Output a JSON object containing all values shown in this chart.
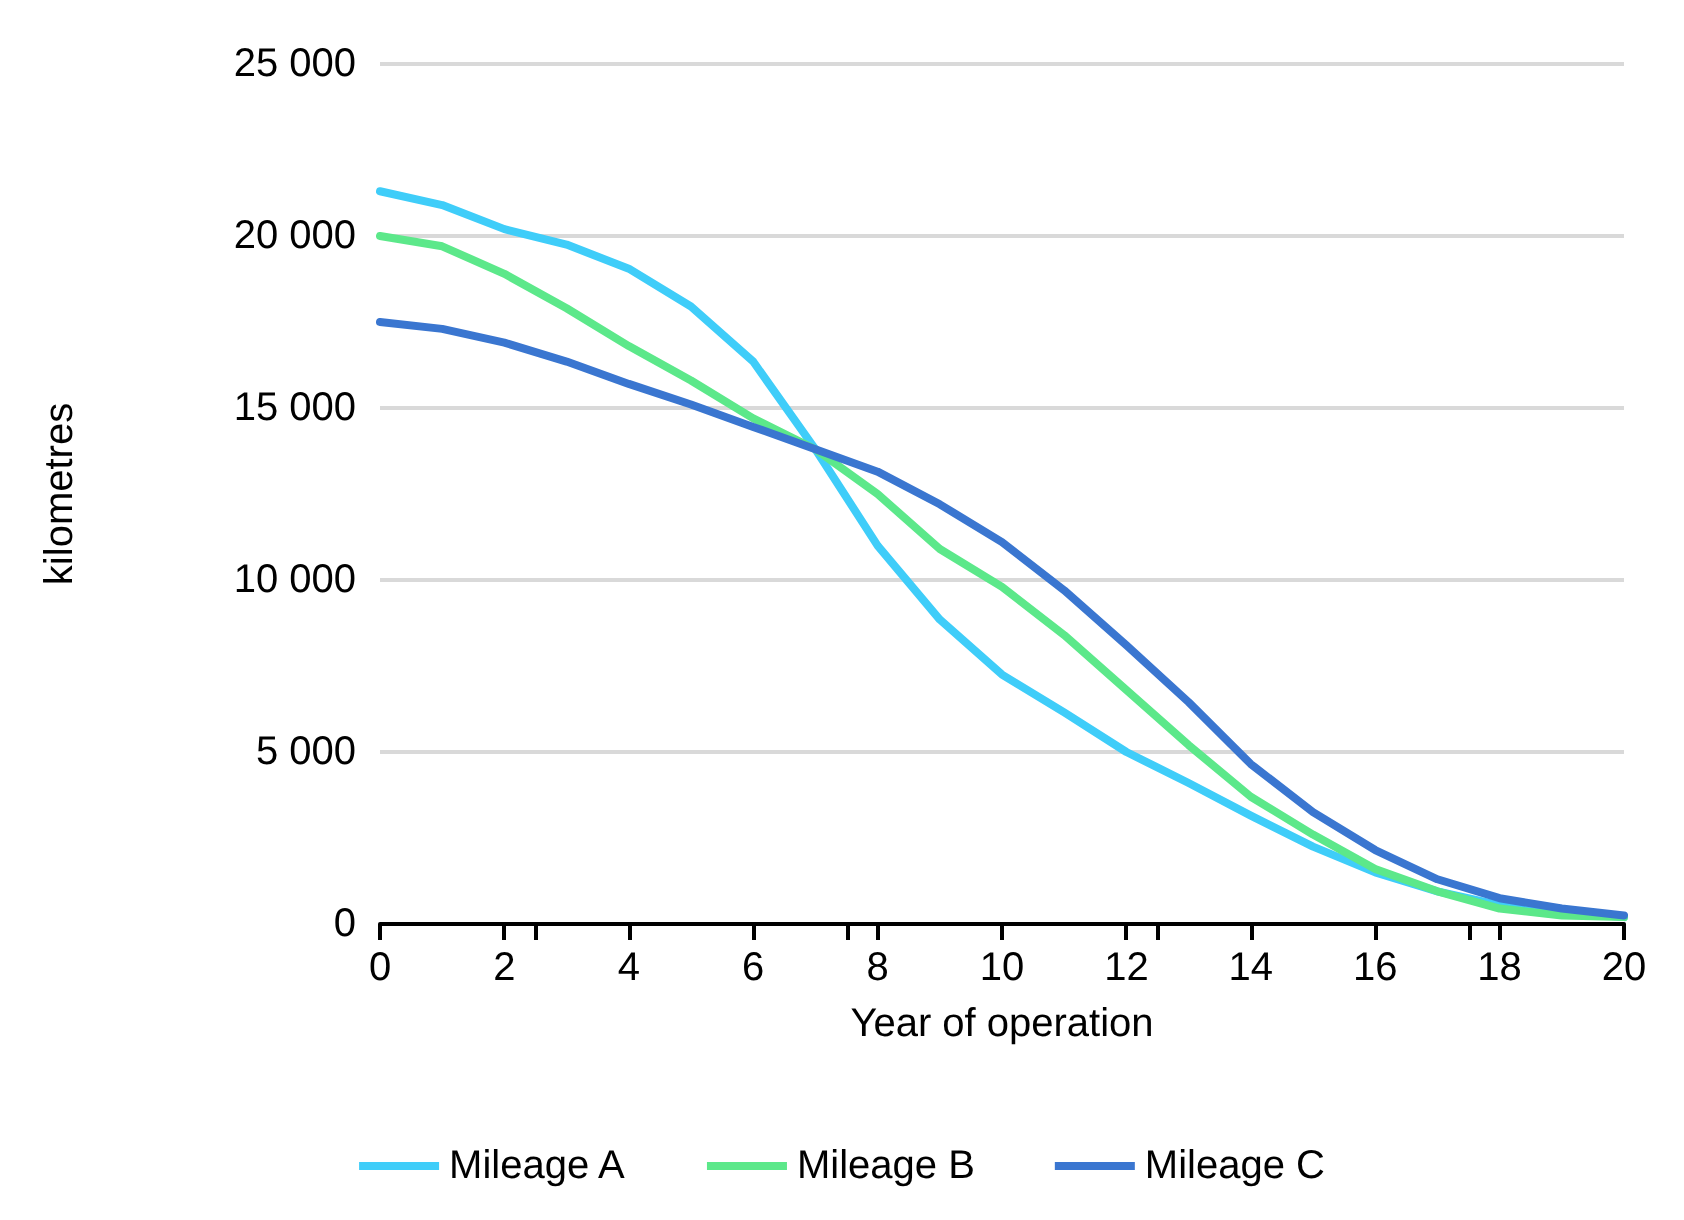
{
  "chart_data": {
    "type": "line",
    "xlabel": "Year of operation",
    "ylabel": "kilometres",
    "x": [
      0,
      1,
      2,
      3,
      4,
      5,
      6,
      7,
      8,
      9,
      10,
      11,
      12,
      13,
      14,
      15,
      16,
      17,
      18,
      19,
      20
    ],
    "xlim": [
      0,
      20
    ],
    "xticks": [
      0,
      2,
      4,
      6,
      8,
      10,
      12,
      14,
      16,
      18,
      20
    ],
    "ylim": [
      0,
      25000
    ],
    "yticks": [
      {
        "value": 0,
        "label": "0"
      },
      {
        "value": 5000,
        "label": "5 000"
      },
      {
        "value": 10000,
        "label": "10 000"
      },
      {
        "value": 15000,
        "label": "15 000"
      },
      {
        "value": 20000,
        "label": "20 000"
      },
      {
        "value": 25000,
        "label": "25 000"
      }
    ],
    "grid": "y",
    "legend": "bottom",
    "marker": "none",
    "line_style": "solid",
    "series": [
      {
        "name": "Mileage A",
        "color": "#3fcdf9",
        "values": [
          21300,
          20900,
          20200,
          19750,
          19050,
          17950,
          16350,
          13800,
          11000,
          8850,
          7250,
          6150,
          5000,
          4100,
          3150,
          2250,
          1500,
          950,
          550,
          350,
          200
        ]
      },
      {
        "name": "Mileage B",
        "color": "#5ce88a",
        "values": [
          20000,
          19700,
          18900,
          17900,
          16800,
          15800,
          14700,
          13800,
          12500,
          10900,
          9800,
          8400,
          6800,
          5200,
          3700,
          2600,
          1600,
          950,
          450,
          250,
          200
        ]
      },
      {
        "name": "Mileage C",
        "color": "#3a76d0",
        "values": [
          17500,
          17300,
          16900,
          16350,
          15700,
          15100,
          14450,
          13800,
          13150,
          12200,
          11100,
          9700,
          8100,
          6450,
          4650,
          3250,
          2150,
          1300,
          750,
          450,
          250
        ]
      }
    ]
  }
}
